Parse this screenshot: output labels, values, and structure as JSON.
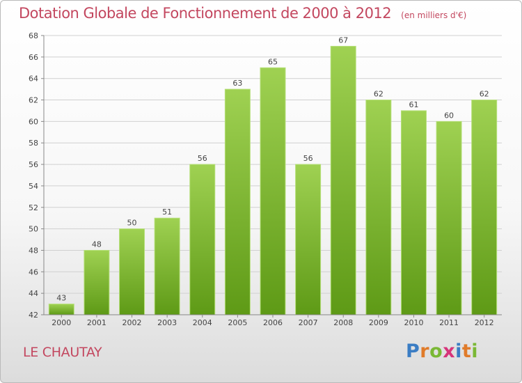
{
  "title": "Dotation Globale de Fonctionnement de 2000 à 2012",
  "subtitle": "(en milliers d'€)",
  "town": "LE CHAUTAY",
  "logo": {
    "text": "Proxiti",
    "letters": [
      {
        "ch": "P",
        "color": "#3b7dc4"
      },
      {
        "ch": "r",
        "color": "#e07b2a"
      },
      {
        "ch": "o",
        "color": "#7ab835"
      },
      {
        "ch": "x",
        "color": "#d6347a"
      },
      {
        "ch": "i",
        "color": "#3b7dc4"
      },
      {
        "ch": "t",
        "color": "#e07b2a"
      },
      {
        "ch": "i",
        "color": "#7ab835"
      }
    ]
  },
  "colors": {
    "title": "#c3475f",
    "bar_top": "#9fd152",
    "bar_bottom": "#5e9a16",
    "grid": "#d0d0d0"
  },
  "chart_data": {
    "type": "bar",
    "categories": [
      "2000",
      "2001",
      "2002",
      "2003",
      "2004",
      "2005",
      "2006",
      "2007",
      "2008",
      "2009",
      "2010",
      "2011",
      "2012"
    ],
    "values": [
      43,
      48,
      50,
      51,
      56,
      63,
      65,
      56,
      67,
      62,
      61,
      60,
      62
    ],
    "data_labels": [
      "43",
      "48",
      "50",
      "51",
      "56",
      "63",
      "65",
      "56",
      "67",
      "62",
      "61",
      "60",
      "62"
    ],
    "ylim": [
      42,
      68
    ],
    "yticks": [
      42,
      44,
      46,
      48,
      50,
      52,
      54,
      56,
      58,
      60,
      62,
      64,
      66,
      68
    ],
    "grid": true,
    "legend": "none"
  }
}
